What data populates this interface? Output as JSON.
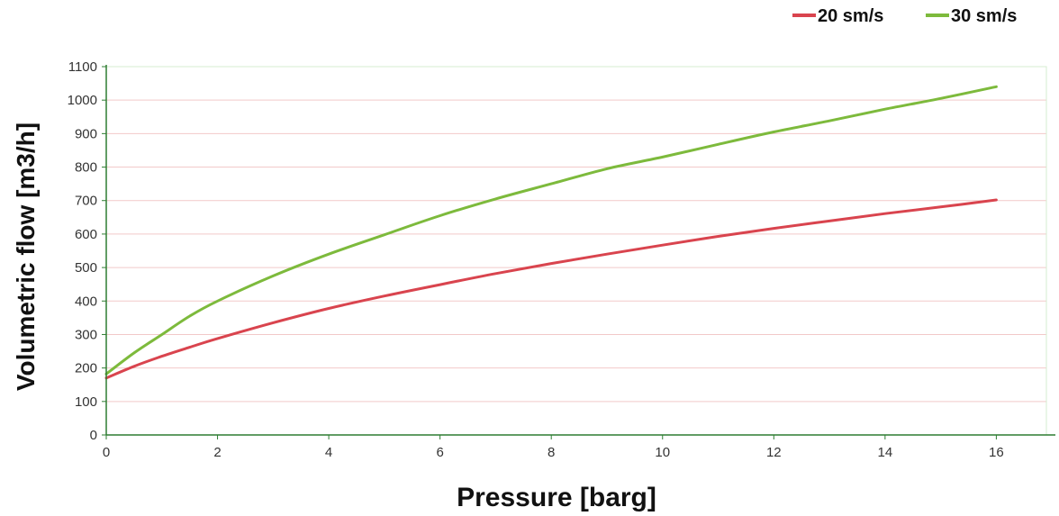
{
  "chart_data": {
    "type": "line",
    "title": "",
    "xlabel": "Pressure [barg]",
    "ylabel": "Volumetric flow [m3/h]",
    "xlim": [
      0,
      16.9
    ],
    "ylim": [
      0,
      1100
    ],
    "x_ticks": [
      "0",
      "2",
      "4",
      "6",
      "8",
      "10",
      "12",
      "14",
      "16"
    ],
    "y_ticks": [
      "0",
      "100",
      "200",
      "300",
      "400",
      "500",
      "600",
      "700",
      "800",
      "900",
      "1000",
      "1100"
    ],
    "grid": "horizontal",
    "legend_position": "top-right",
    "series": [
      {
        "name": "20 sm/s",
        "color": "#d9444e",
        "x": [
          0,
          0.5,
          1,
          1.5,
          2,
          3,
          4,
          5,
          6,
          7,
          8,
          9,
          10,
          11,
          12,
          13,
          14,
          15,
          16
        ],
        "y": [
          170,
          205,
          235,
          262,
          288,
          335,
          378,
          415,
          449,
          482,
          512,
          540,
          567,
          593,
          617,
          639,
          661,
          681,
          702
        ]
      },
      {
        "name": "30 sm/s",
        "color": "#7dba3c",
        "x": [
          0,
          0.5,
          1,
          1.5,
          2,
          3,
          4,
          5,
          6,
          7,
          8,
          9,
          10,
          11,
          12,
          13,
          14,
          15,
          16
        ],
        "y": [
          182,
          245,
          300,
          355,
          400,
          475,
          540,
          598,
          655,
          705,
          750,
          795,
          830,
          868,
          905,
          938,
          973,
          1005,
          1040
        ]
      }
    ]
  }
}
